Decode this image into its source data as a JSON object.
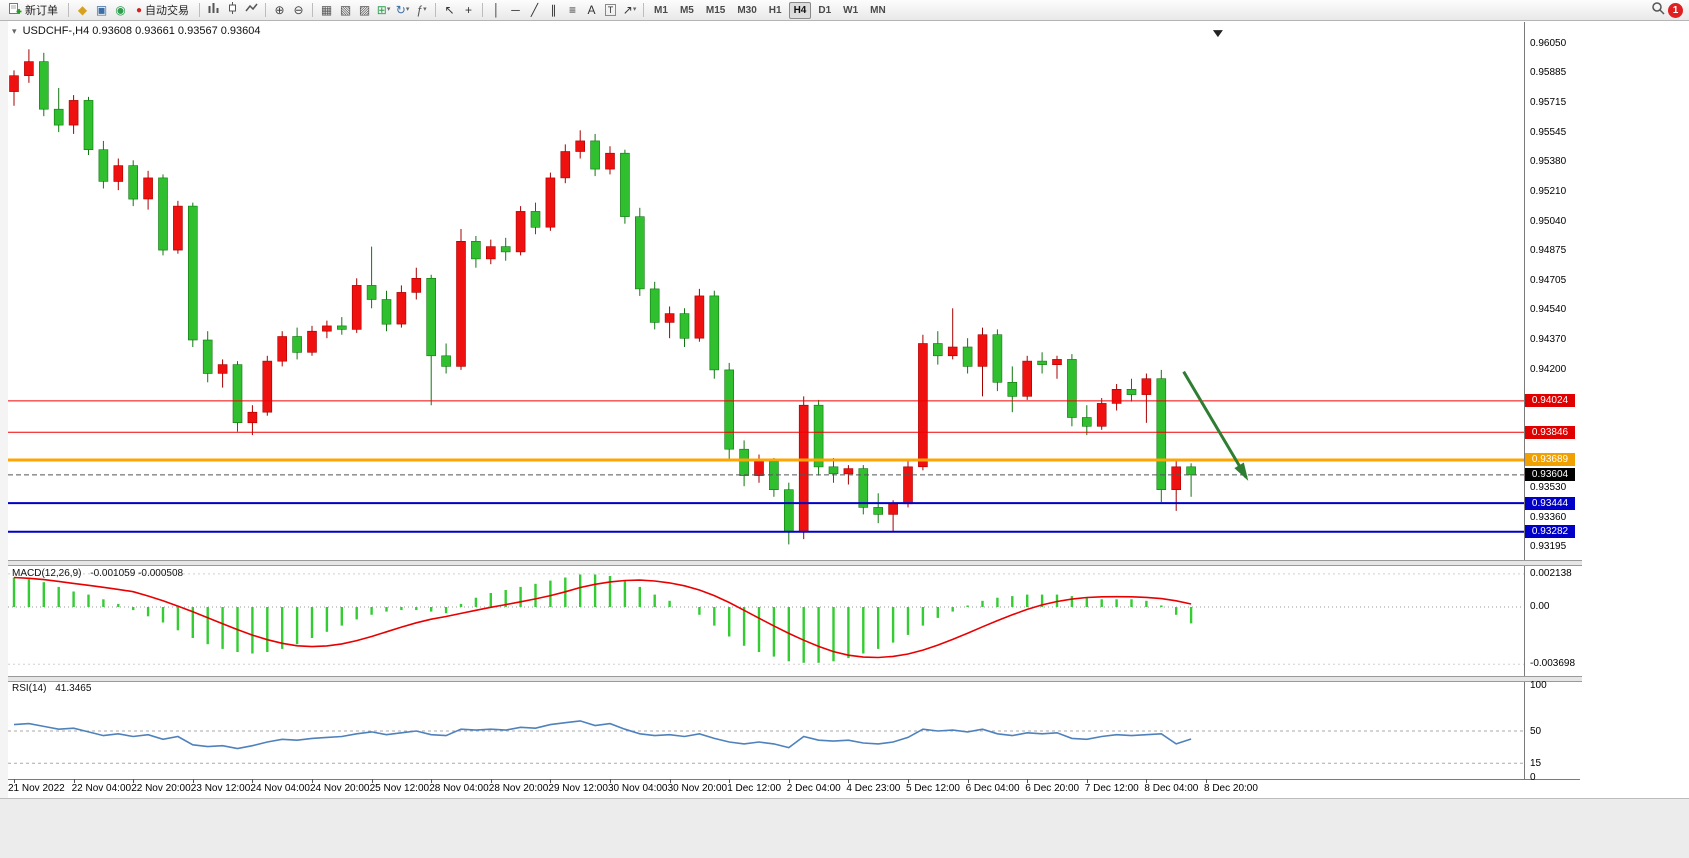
{
  "toolbar": {
    "new_order_label": "新订单",
    "autotrading_label": "自动交易",
    "active_timeframe": "H4",
    "notification_count": "1",
    "icons": [
      "new-order-icon",
      "charts-profile-icon",
      "market-watch-icon",
      "navigator-icon",
      "autotrading-icon",
      "bar-chart-icon",
      "candlestick-chart-icon",
      "line-chart-icon",
      "zoom-in-icon",
      "zoom-out-icon",
      "tile-windows-icon",
      "cascade-windows-icon",
      "auto-arrange-icon",
      "new-chart-icon",
      "profiles-icon",
      "indicators-icon",
      "cursor-icon",
      "crosshair-icon",
      "vertical-line-icon",
      "horizontal-line-icon",
      "trendline-icon",
      "channel-icon",
      "fibonacci-icon",
      "text-icon",
      "text-label-icon",
      "arrows-icon",
      "search-icon",
      "notification-badge"
    ],
    "items": [
      {
        "type": "button",
        "name": "new-order-button",
        "icon": "new-order-icon",
        "shape": "neworder",
        "label": "新订单"
      },
      {
        "type": "sep"
      },
      {
        "type": "icon",
        "name": "charts-profile-icon",
        "glyph": "◆",
        "color": "#d8a020"
      },
      {
        "type": "icon",
        "name": "market-watch-icon",
        "glyph": "▣",
        "color": "#3a6ea5"
      },
      {
        "type": "icon",
        "name": "navigator-icon",
        "glyph": "◉",
        "color": "#2e9e4f"
      },
      {
        "type": "button",
        "name": "autotrading-button",
        "icon": "autotrading-icon",
        "glyph": "●",
        "color": "#d42020",
        "label": "自动交易"
      },
      {
        "type": "sep"
      },
      {
        "type": "icon",
        "name": "bar-chart-icon",
        "shape": "bars"
      },
      {
        "type": "icon",
        "name": "candlestick-chart-icon",
        "shape": "candle"
      },
      {
        "type": "icon",
        "name": "line-chart-icon",
        "shape": "linechart"
      },
      {
        "type": "sep"
      },
      {
        "type": "icon",
        "name": "zoom-in-icon",
        "glyph": "⊕",
        "color": "#444444"
      },
      {
        "type": "icon",
        "name": "zoom-out-icon",
        "glyph": "⊖",
        "color": "#444444"
      },
      {
        "type": "sep"
      },
      {
        "type": "icon",
        "name": "tile-windows-icon",
        "glyph": "▦",
        "color": "#555555"
      },
      {
        "type": "icon",
        "name": "cascade-windows-icon",
        "glyph": "▧",
        "color": "#555555"
      },
      {
        "type": "icon",
        "name": "auto-arrange-icon",
        "glyph": "▨",
        "color": "#555555"
      },
      {
        "type": "icon",
        "name": "new-chart-icon",
        "glyph": "⊞",
        "color": "#2e9e4f",
        "caret": true
      },
      {
        "type": "icon",
        "name": "profiles-icon",
        "glyph": "↻",
        "color": "#3a6ea5",
        "caret": true
      },
      {
        "type": "icon",
        "name": "indicators-icon",
        "glyph": "ƒ",
        "color": "#555555",
        "caret": true
      },
      {
        "type": "sep"
      },
      {
        "type": "icon",
        "name": "cursor-icon",
        "glyph": "↖",
        "color": "#333333"
      },
      {
        "type": "icon",
        "name": "crosshair-icon",
        "glyph": "+",
        "color": "#333333"
      },
      {
        "type": "sep"
      },
      {
        "type": "icon",
        "name": "vertical-line-icon",
        "glyph": "│",
        "color": "#333333"
      },
      {
        "type": "icon",
        "name": "horizontal-line-icon",
        "glyph": "─",
        "color": "#333333"
      },
      {
        "type": "icon",
        "name": "trendline-icon",
        "glyph": "╱",
        "color": "#333333"
      },
      {
        "type": "icon",
        "name": "channel-icon",
        "glyph": "∥",
        "color": "#333333"
      },
      {
        "type": "icon",
        "name": "fibonacci-icon",
        "glyph": "≡",
        "color": "#333333"
      },
      {
        "type": "icon",
        "name": "text-icon",
        "glyph": "A",
        "color": "#333333"
      },
      {
        "type": "icon",
        "name": "text-label-icon",
        "glyph": "T",
        "color": "#333333",
        "boxed": true
      },
      {
        "type": "icon",
        "name": "arrows-icon",
        "glyph": "↗",
        "color": "#333333",
        "caret": true
      },
      {
        "type": "sep"
      },
      {
        "type": "tf",
        "name": "timeframe-m1",
        "label": "M1"
      },
      {
        "type": "tf",
        "name": "timeframe-m5",
        "label": "M5"
      },
      {
        "type": "tf",
        "name": "timeframe-m15",
        "label": "M15"
      },
      {
        "type": "tf",
        "name": "timeframe-m30",
        "label": "M30"
      },
      {
        "type": "tf",
        "name": "timeframe-h1",
        "label": "H1"
      },
      {
        "type": "tf",
        "name": "timeframe-h4",
        "label": "H4",
        "active": true
      },
      {
        "type": "tf",
        "name": "timeframe-d1",
        "label": "D1"
      },
      {
        "type": "tf",
        "name": "timeframe-w1",
        "label": "W1"
      },
      {
        "type": "tf",
        "name": "timeframe-mn",
        "label": "MN"
      },
      {
        "type": "spacer"
      },
      {
        "type": "icon",
        "name": "search-icon",
        "shape": "search"
      },
      {
        "type": "badge",
        "name": "notification-badge",
        "label": "1"
      }
    ]
  },
  "chart_data": {
    "type": "candlestick",
    "symbol": "USDCHF-",
    "period": "H4",
    "title": "USDCHF-,H4",
    "ohlc_display": "0.93608 0.93661 0.93567 0.93604",
    "up_color": "#ef1010",
    "down_color": "#2fbf2f",
    "up_wick": "#a50000",
    "down_wick": "#107710",
    "price_axis_labels": [
      "0.96050",
      "0.95885",
      "0.95715",
      "0.95545",
      "0.95380",
      "0.95210",
      "0.95040",
      "0.94875",
      "0.94705",
      "0.94540",
      "0.94370",
      "0.94200",
      "0.93530",
      "0.93360",
      "0.93195"
    ],
    "time_labels": [
      "21 Nov 2022",
      "22 Nov 04:00",
      "22 Nov 20:00",
      "23 Nov 12:00",
      "24 Nov 04:00",
      "24 Nov 20:00",
      "25 Nov 12:00",
      "28 Nov 04:00",
      "28 Nov 20:00",
      "29 Nov 12:00",
      "30 Nov 04:00",
      "30 Nov 20:00",
      "1 Dec 12:00",
      "2 Dec 04:00",
      "4 Dec 23:00",
      "5 Dec 12:00",
      "6 Dec 04:00",
      "6 Dec 20:00",
      "7 Dec 12:00",
      "8 Dec 04:00",
      "8 Dec 20:00"
    ],
    "candles": {
      "open": [
        0.9578,
        0.9587,
        0.9595,
        0.9568,
        0.9559,
        0.9573,
        0.9545,
        0.9527,
        0.9536,
        0.9517,
        0.9529,
        0.9488,
        0.9513,
        0.9437,
        0.9418,
        0.9423,
        0.939,
        0.9396,
        0.9425,
        0.9439,
        0.943,
        0.9442,
        0.9445,
        0.9443,
        0.9468,
        0.946,
        0.9446,
        0.9464,
        0.9472,
        0.9428,
        0.9422,
        0.9493,
        0.9483,
        0.949,
        0.9487,
        0.951,
        0.9501,
        0.9529,
        0.9544,
        0.955,
        0.9534,
        0.9543,
        0.9507,
        0.9466,
        0.9447,
        0.9452,
        0.9438,
        0.9462,
        0.942,
        0.9375,
        0.936,
        0.9368,
        0.9352,
        0.9328,
        0.94,
        0.9365,
        0.9361,
        0.9364,
        0.9342,
        0.9338,
        0.9344,
        0.9365,
        0.9435,
        0.9428,
        0.9433,
        0.9422,
        0.944,
        0.9413,
        0.9405,
        0.9425,
        0.9423,
        0.9426,
        0.9393,
        0.9388,
        0.9401,
        0.9409,
        0.9406,
        0.9415,
        0.9352,
        0.9365
      ],
      "high": [
        0.959,
        0.9602,
        0.96,
        0.958,
        0.9576,
        0.9575,
        0.955,
        0.954,
        0.9539,
        0.9533,
        0.9531,
        0.9516,
        0.9515,
        0.9442,
        0.9426,
        0.9425,
        0.94,
        0.9428,
        0.9442,
        0.9444,
        0.9445,
        0.9448,
        0.945,
        0.9472,
        0.949,
        0.9465,
        0.9468,
        0.9478,
        0.9474,
        0.9435,
        0.95,
        0.9496,
        0.9494,
        0.9495,
        0.9513,
        0.9515,
        0.9532,
        0.9548,
        0.9556,
        0.9554,
        0.9547,
        0.9545,
        0.9512,
        0.947,
        0.9456,
        0.9455,
        0.9466,
        0.9465,
        0.9424,
        0.938,
        0.9372,
        0.937,
        0.9356,
        0.9405,
        0.9403,
        0.937,
        0.9366,
        0.9366,
        0.935,
        0.9346,
        0.9368,
        0.944,
        0.9442,
        0.9455,
        0.9438,
        0.9444,
        0.9443,
        0.9422,
        0.9428,
        0.943,
        0.9428,
        0.9429,
        0.94,
        0.9404,
        0.9412,
        0.9415,
        0.9418,
        0.942,
        0.9368,
        0.9367
      ],
      "low": [
        0.957,
        0.9583,
        0.9564,
        0.9555,
        0.9554,
        0.9542,
        0.9523,
        0.9522,
        0.9513,
        0.9511,
        0.9485,
        0.9486,
        0.9433,
        0.9413,
        0.941,
        0.9385,
        0.9383,
        0.9394,
        0.9422,
        0.9426,
        0.9428,
        0.9438,
        0.944,
        0.9441,
        0.9455,
        0.9442,
        0.9444,
        0.946,
        0.94,
        0.9418,
        0.942,
        0.9478,
        0.948,
        0.9482,
        0.9485,
        0.9497,
        0.9499,
        0.9526,
        0.954,
        0.953,
        0.9531,
        0.9503,
        0.9462,
        0.9443,
        0.9438,
        0.9433,
        0.9436,
        0.9415,
        0.9369,
        0.9354,
        0.9356,
        0.9348,
        0.9321,
        0.9324,
        0.936,
        0.9356,
        0.9355,
        0.9338,
        0.9333,
        0.9328,
        0.9342,
        0.9363,
        0.9423,
        0.9426,
        0.9418,
        0.9405,
        0.9408,
        0.9396,
        0.9403,
        0.9418,
        0.9415,
        0.9388,
        0.9383,
        0.9386,
        0.9397,
        0.9402,
        0.939,
        0.9345,
        0.934,
        0.9348
      ],
      "close": [
        0.9587,
        0.9595,
        0.9568,
        0.9559,
        0.9573,
        0.9545,
        0.9527,
        0.9536,
        0.9517,
        0.9529,
        0.9488,
        0.9513,
        0.9437,
        0.9418,
        0.9423,
        0.939,
        0.9396,
        0.9425,
        0.9439,
        0.943,
        0.9442,
        0.9445,
        0.9443,
        0.9468,
        0.946,
        0.9446,
        0.9464,
        0.9472,
        0.9428,
        0.9422,
        0.9493,
        0.9483,
        0.949,
        0.9487,
        0.951,
        0.9501,
        0.9529,
        0.9544,
        0.955,
        0.9534,
        0.9543,
        0.9507,
        0.9466,
        0.9447,
        0.9452,
        0.9438,
        0.9462,
        0.942,
        0.9375,
        0.936,
        0.9368,
        0.9352,
        0.9328,
        0.94,
        0.9365,
        0.9361,
        0.9364,
        0.9342,
        0.9338,
        0.9344,
        0.9365,
        0.9435,
        0.9428,
        0.9433,
        0.9422,
        0.944,
        0.9413,
        0.9405,
        0.9425,
        0.9423,
        0.9426,
        0.9393,
        0.9388,
        0.9401,
        0.9409,
        0.9406,
        0.9415,
        0.9352,
        0.9365,
        0.93604
      ]
    },
    "horizontal_lines": [
      {
        "price": 0.94024,
        "label": "0.94024",
        "color": "#f00000",
        "thickness": 1,
        "badge": "#e00000"
      },
      {
        "price": 0.93846,
        "label": "0.93846",
        "color": "#f00000",
        "thickness": 1,
        "badge": "#e00000"
      },
      {
        "price": 0.93689,
        "label": "0.93689",
        "color": "#ffa400",
        "thickness": 3,
        "badge": "#f0a000"
      },
      {
        "price": 0.93444,
        "label": "0.93444",
        "color": "#0000c8",
        "thickness": 2,
        "badge": "#0000c8"
      },
      {
        "price": 0.93282,
        "label": "0.93282",
        "color": "#0000c8",
        "thickness": 2,
        "badge": "#0000c8"
      }
    ],
    "current_price": {
      "price": 0.93604,
      "label": "0.93604",
      "badge": "#000000"
    },
    "annotation": {
      "type": "arrow",
      "color": "#2f7d32",
      "from": {
        "bar": 78.5,
        "price": 0.9419
      },
      "to": {
        "bar": 82.7,
        "price": 0.9359
      }
    },
    "marker": {
      "type": "triangle-down",
      "bar": 80.8,
      "price": 0.96129
    },
    "indicators": {
      "macd": {
        "name": "MACD(12,26,9)",
        "values_text": "-0.001059 -0.000508",
        "axis_labels": [
          "0.002138",
          "0.00",
          "-0.003698"
        ],
        "histogram_color": "#33cc33",
        "signal_color": "#e80000",
        "histogram": [
          0.0019,
          0.0018,
          0.0016,
          0.0013,
          0.001,
          0.0008,
          0.0005,
          0.0002,
          -0.0002,
          -0.0006,
          -0.001,
          -0.0015,
          -0.002,
          -0.0024,
          -0.0027,
          -0.0029,
          -0.003,
          -0.0029,
          -0.0027,
          -0.0024,
          -0.002,
          -0.0016,
          -0.0012,
          -0.0008,
          -0.0005,
          -0.0003,
          -0.0002,
          -0.0002,
          -0.0003,
          -0.0004,
          0.0002,
          0.0006,
          0.0009,
          0.0011,
          0.0013,
          0.0015,
          0.0017,
          0.0019,
          0.0021,
          0.0021,
          0.002,
          0.0017,
          0.0013,
          0.0008,
          0.0004,
          0.0,
          -0.0005,
          -0.0012,
          -0.0019,
          -0.0025,
          -0.0029,
          -0.0032,
          -0.0035,
          -0.0036,
          -0.0036,
          -0.0035,
          -0.0033,
          -0.003,
          -0.0027,
          -0.0023,
          -0.0018,
          -0.0012,
          -0.0007,
          -0.0003,
          0.0001,
          0.0004,
          0.0006,
          0.0007,
          0.0008,
          0.0008,
          0.0008,
          0.0007,
          0.0006,
          0.0005,
          0.0005,
          0.0005,
          0.0004,
          0.0001,
          -0.0005,
          -0.001059
        ]
      },
      "rsi": {
        "name": "RSI(14)",
        "value_text": "41.3465",
        "axis_labels": [
          "100",
          "50",
          "15",
          "0"
        ],
        "levels": [
          50,
          15
        ],
        "line_color": "#4f81bd",
        "values": [
          57,
          58,
          55,
          52,
          53,
          49,
          45,
          47,
          44,
          46,
          41,
          44,
          35,
          33,
          34,
          31,
          34,
          38,
          41,
          40,
          42,
          43,
          44,
          47,
          49,
          46,
          48,
          50,
          46,
          45,
          52,
          51,
          52,
          51,
          54,
          53,
          57,
          59,
          61,
          56,
          58,
          52,
          47,
          45,
          46,
          44,
          47,
          42,
          38,
          36,
          38,
          36,
          32,
          44,
          40,
          39,
          40,
          37,
          36,
          38,
          43,
          52,
          50,
          51,
          49,
          52,
          47,
          45,
          48,
          47,
          48,
          42,
          41,
          44,
          46,
          45,
          46,
          47,
          36,
          41.35
        ]
      }
    }
  }
}
